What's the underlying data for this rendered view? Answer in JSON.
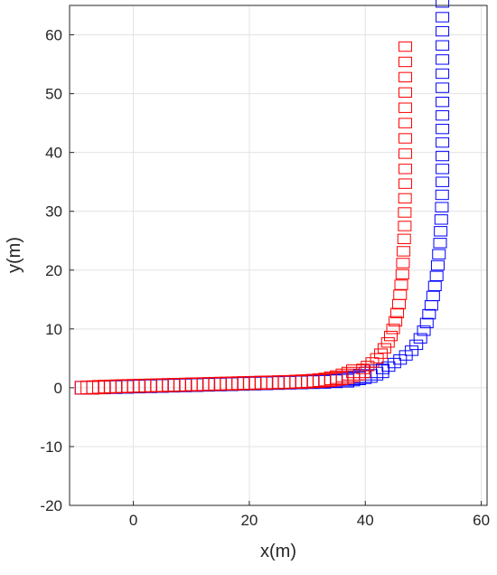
{
  "chart_data": {
    "type": "scatter",
    "title": "",
    "xlabel": "x(m)",
    "ylabel": "y(m)",
    "xlim": [
      -11,
      61
    ],
    "ylim": [
      -20,
      65
    ],
    "xticks": [
      0,
      20,
      40,
      60
    ],
    "yticks": [
      -20,
      -10,
      0,
      10,
      20,
      30,
      40,
      50,
      60
    ],
    "grid": true,
    "legend": "none",
    "marker": "square",
    "series": [
      {
        "color": "#0000ff",
        "points": [
          [
            -8,
            0
          ],
          [
            -6,
            0.05
          ],
          [
            -4,
            0.1
          ],
          [
            -2,
            0.15
          ],
          [
            0,
            0.2
          ],
          [
            2,
            0.25
          ],
          [
            4,
            0.3
          ],
          [
            6,
            0.35
          ],
          [
            8,
            0.4
          ],
          [
            10,
            0.45
          ],
          [
            12,
            0.5
          ],
          [
            14,
            0.55
          ],
          [
            16,
            0.6
          ],
          [
            18,
            0.65
          ],
          [
            20,
            0.7
          ],
          [
            22,
            0.75
          ],
          [
            24,
            0.8
          ],
          [
            26,
            0.85
          ],
          [
            28,
            0.9
          ],
          [
            30,
            0.95
          ],
          [
            32,
            1.0
          ],
          [
            34,
            1.1
          ],
          [
            36,
            1.2
          ],
          [
            37,
            1.4
          ],
          [
            38,
            1.6
          ],
          [
            39,
            1.8
          ],
          [
            40,
            2.0
          ],
          [
            41,
            2.4
          ],
          [
            42,
            2.8
          ],
          [
            43,
            3.2
          ],
          [
            44,
            3.6
          ],
          [
            45,
            4.2
          ],
          [
            46,
            4.8
          ],
          [
            47,
            5.5
          ],
          [
            48,
            6.3
          ],
          [
            48.8,
            7.3
          ],
          [
            49.5,
            8.4
          ],
          [
            50.1,
            9.7
          ],
          [
            50.6,
            11
          ],
          [
            51,
            12.5
          ],
          [
            51.4,
            14
          ],
          [
            51.7,
            15.6
          ],
          [
            52,
            17.3
          ],
          [
            52.3,
            19
          ],
          [
            52.5,
            20.8
          ],
          [
            52.7,
            22.7
          ],
          [
            52.9,
            24.6
          ],
          [
            53,
            26.6
          ],
          [
            53.1,
            28.6
          ],
          [
            53.2,
            30.7
          ],
          [
            53.25,
            32.8
          ],
          [
            53.3,
            35
          ],
          [
            53.3,
            37.2
          ],
          [
            53.3,
            39.4
          ],
          [
            53.3,
            41.7
          ],
          [
            53.3,
            44
          ],
          [
            53.3,
            46.3
          ],
          [
            53.3,
            48.6
          ],
          [
            53.3,
            51
          ],
          [
            53.3,
            53.4
          ],
          [
            53.3,
            55.8
          ],
          [
            53.3,
            58.2
          ],
          [
            53.3,
            60.6
          ],
          [
            53.3,
            63
          ],
          [
            53.3,
            65.5
          ]
        ]
      },
      {
        "color": "#ff0000",
        "points": [
          [
            -8,
            0
          ],
          [
            -7,
            0.05
          ],
          [
            -6,
            0.1
          ],
          [
            -5,
            0.15
          ],
          [
            -4,
            0.2
          ],
          [
            -3,
            0.22
          ],
          [
            -2,
            0.25
          ],
          [
            -1,
            0.28
          ],
          [
            0,
            0.3
          ],
          [
            1,
            0.32
          ],
          [
            2,
            0.35
          ],
          [
            3,
            0.38
          ],
          [
            4,
            0.4
          ],
          [
            5,
            0.42
          ],
          [
            6,
            0.45
          ],
          [
            7,
            0.48
          ],
          [
            8,
            0.5
          ],
          [
            9,
            0.52
          ],
          [
            10,
            0.55
          ],
          [
            11,
            0.58
          ],
          [
            12,
            0.6
          ],
          [
            13,
            0.62
          ],
          [
            14,
            0.65
          ],
          [
            15,
            0.68
          ],
          [
            16,
            0.7
          ],
          [
            17,
            0.72
          ],
          [
            18,
            0.75
          ],
          [
            19,
            0.78
          ],
          [
            20,
            0.8
          ],
          [
            21,
            0.82
          ],
          [
            22,
            0.85
          ],
          [
            23,
            0.88
          ],
          [
            24,
            0.9
          ],
          [
            25,
            0.92
          ],
          [
            26,
            0.95
          ],
          [
            27,
            0.98
          ],
          [
            28,
            1.0
          ],
          [
            29,
            1.05
          ],
          [
            30,
            1.1
          ],
          [
            31,
            1.15
          ],
          [
            32,
            1.2
          ],
          [
            33,
            1.3
          ],
          [
            34,
            1.4
          ],
          [
            35,
            1.6
          ],
          [
            36,
            1.8
          ],
          [
            37,
            2.1
          ],
          [
            38,
            2.4
          ],
          [
            38.8,
            2.8
          ],
          [
            39.6,
            3.2
          ],
          [
            40.4,
            3.7
          ],
          [
            41.2,
            4.3
          ],
          [
            42,
            5.0
          ],
          [
            42.7,
            5.8
          ],
          [
            43.3,
            6.7
          ],
          [
            43.9,
            7.7
          ],
          [
            44.4,
            8.8
          ],
          [
            44.8,
            10
          ],
          [
            45.2,
            11.3
          ],
          [
            45.5,
            12.7
          ],
          [
            45.8,
            14.2
          ],
          [
            46,
            15.8
          ],
          [
            46.2,
            17.5
          ],
          [
            46.4,
            19.3
          ],
          [
            46.5,
            21.2
          ],
          [
            46.6,
            23.2
          ],
          [
            46.7,
            25.3
          ],
          [
            46.8,
            27.5
          ],
          [
            46.8,
            29.8
          ],
          [
            46.85,
            32.2
          ],
          [
            46.9,
            34.7
          ],
          [
            46.9,
            37.2
          ],
          [
            46.9,
            39.8
          ],
          [
            46.9,
            42.4
          ],
          [
            46.9,
            45
          ],
          [
            46.9,
            47.6
          ],
          [
            46.9,
            50.2
          ],
          [
            46.9,
            52.8
          ],
          [
            46.9,
            55.4
          ],
          [
            46.9,
            58
          ]
        ]
      }
    ]
  }
}
